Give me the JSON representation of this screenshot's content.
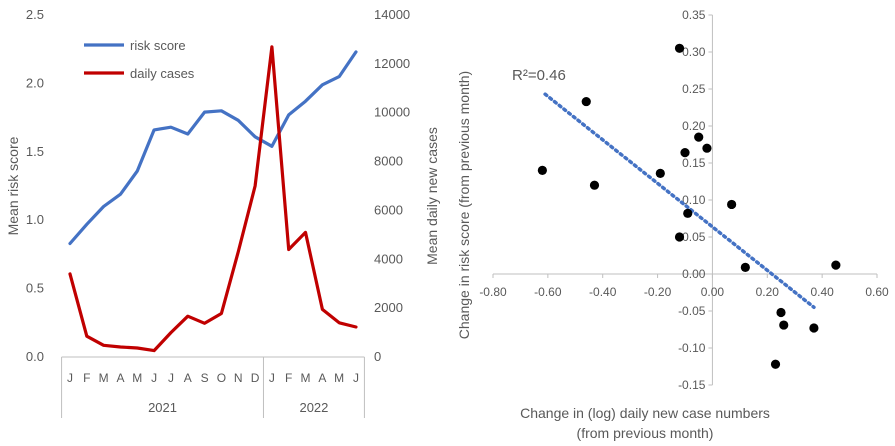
{
  "chart_data": [
    {
      "type": "line",
      "title": "",
      "xlabel": "",
      "x": [
        "J",
        "F",
        "M",
        "A",
        "M",
        "J",
        "J",
        "A",
        "S",
        "O",
        "N",
        "D",
        "J",
        "F",
        "M",
        "A",
        "M",
        "J"
      ],
      "year_groups": [
        {
          "label": "2021",
          "count": 12
        },
        {
          "label": "2022",
          "count": 6
        }
      ],
      "y_left": {
        "label": "Mean risk score",
        "lim": [
          0,
          2.5
        ],
        "ticks": [
          "0.0",
          "0.5",
          "1.0",
          "1.5",
          "2.0",
          "2.5"
        ]
      },
      "y_right": {
        "label": "Mean daily new cases",
        "lim": [
          0,
          14000
        ],
        "ticks": [
          "0",
          "2000",
          "4000",
          "6000",
          "8000",
          "10000",
          "12000",
          "14000"
        ]
      },
      "legend_position": "top-left",
      "series": [
        {
          "name": "risk score",
          "axis": "left",
          "color": "#4472C4",
          "values": [
            0.83,
            0.97,
            1.1,
            1.19,
            1.36,
            1.66,
            1.68,
            1.63,
            1.79,
            1.8,
            1.73,
            1.61,
            1.54,
            1.77,
            1.87,
            1.99,
            2.05,
            2.23
          ]
        },
        {
          "name": "daily cases",
          "axis": "right",
          "color": "#C00000",
          "values": [
            3400,
            850,
            480,
            410,
            370,
            260,
            1000,
            1670,
            1380,
            1780,
            4300,
            7000,
            12700,
            4400,
            5100,
            1950,
            1400,
            1230
          ]
        }
      ]
    },
    {
      "type": "scatter",
      "title": "",
      "xlabel": "Change in (log) daily new case numbers (from previous month)",
      "ylabel": "Change in risk score (from previous month)",
      "xlim": [
        -0.8,
        0.6
      ],
      "ylim": [
        -0.15,
        0.35
      ],
      "xticks": [
        "-0.80",
        "-0.60",
        "-0.40",
        "-0.20",
        "0.00",
        "0.20",
        "0.40",
        "0.60"
      ],
      "yticks": [
        "-0.15",
        "-0.10",
        "-0.05",
        "0.00",
        "0.05",
        "0.10",
        "0.15",
        "0.20",
        "0.25",
        "0.30",
        "0.35"
      ],
      "annotation": "R²=0.46",
      "trendline": {
        "x0": -0.61,
        "y0": 0.243,
        "x1": 0.37,
        "y1": -0.045,
        "color": "#4472C4"
      },
      "points": [
        {
          "x": -0.62,
          "y": 0.14
        },
        {
          "x": -0.46,
          "y": 0.233
        },
        {
          "x": -0.43,
          "y": 0.12
        },
        {
          "x": -0.19,
          "y": 0.136
        },
        {
          "x": -0.12,
          "y": 0.305
        },
        {
          "x": -0.1,
          "y": 0.164
        },
        {
          "x": -0.09,
          "y": 0.082
        },
        {
          "x": -0.12,
          "y": 0.05
        },
        {
          "x": -0.05,
          "y": 0.185
        },
        {
          "x": -0.02,
          "y": 0.17
        },
        {
          "x": 0.07,
          "y": 0.094
        },
        {
          "x": 0.12,
          "y": 0.009
        },
        {
          "x": 0.45,
          "y": 0.012
        },
        {
          "x": 0.25,
          "y": -0.052
        },
        {
          "x": 0.26,
          "y": -0.069
        },
        {
          "x": 0.37,
          "y": -0.073
        },
        {
          "x": 0.23,
          "y": -0.122
        }
      ]
    }
  ]
}
